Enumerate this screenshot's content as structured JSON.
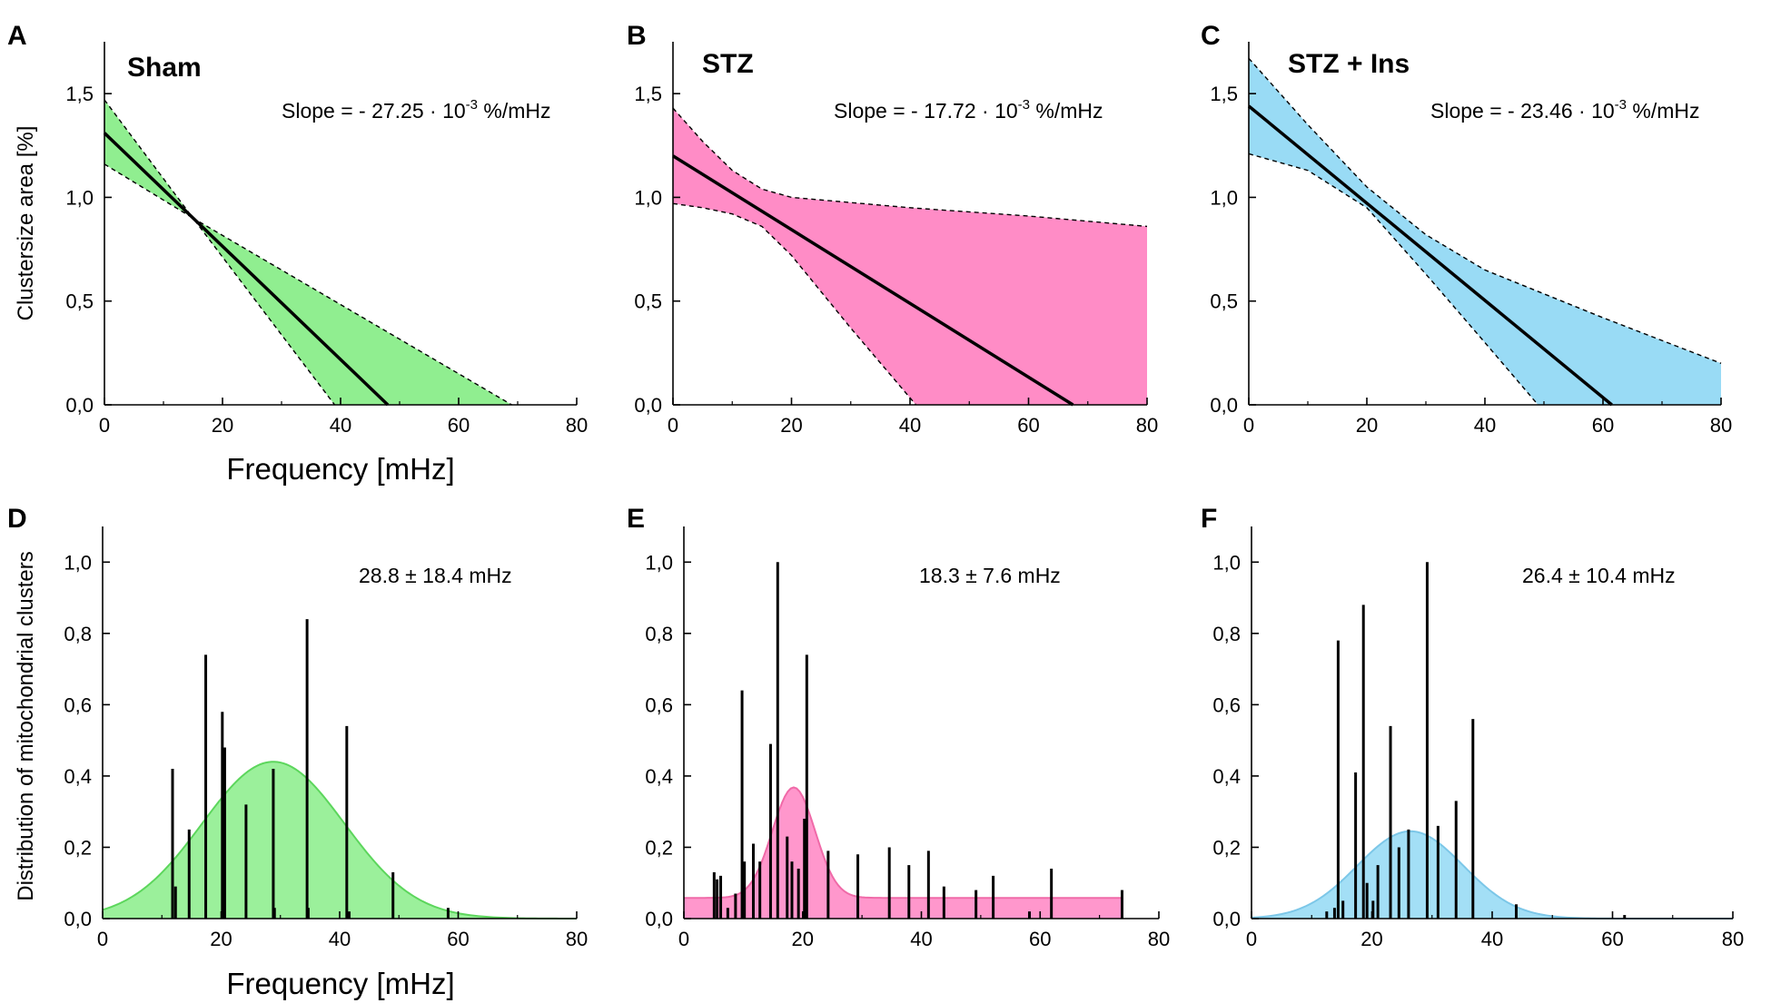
{
  "chart_data": [
    {
      "id": "A",
      "letter": "A",
      "type": "line",
      "title": "Sham",
      "annotation": {
        "prefix": "Slope = - 27.25 · 10",
        "sup": "-3",
        "suffix": " %/mHz"
      },
      "xlabel": "Frequency [mHz]",
      "ylabel": "Clustersize area [%]",
      "xlim": [
        0,
        80
      ],
      "ylim": [
        0,
        1.75
      ],
      "xticks": [
        "0",
        "20",
        "40",
        "60",
        "80"
      ],
      "yticks": [
        "0,0",
        "0,5",
        "1,0",
        "1,5"
      ],
      "fill_color": "#90ee90",
      "fit_line": {
        "x": [
          0,
          48
        ],
        "y": [
          1.31,
          0.0
        ]
      },
      "ci_upper": {
        "x": [
          0,
          15,
          69
        ],
        "y": [
          1.47,
          0.9,
          0.0
        ]
      },
      "ci_lower": {
        "x": [
          0,
          15,
          39
        ],
        "y": [
          1.16,
          0.9,
          0.0
        ]
      }
    },
    {
      "id": "B",
      "letter": "B",
      "type": "line",
      "title": "STZ",
      "annotation": {
        "prefix": "Slope = - 17.72 · 10",
        "sup": "-3",
        "suffix": " %/mHz"
      },
      "xlabel": "",
      "ylabel": "",
      "xlim": [
        0,
        80
      ],
      "ylim": [
        0,
        1.75
      ],
      "xticks": [
        "0",
        "20",
        "40",
        "60",
        "80"
      ],
      "yticks": [
        "0,0",
        "0,5",
        "1,0",
        "1,5"
      ],
      "fill_color": "#ff8cc6",
      "fit_line": {
        "x": [
          0,
          67.5
        ],
        "y": [
          1.2,
          0.0
        ]
      },
      "ci_upper": {
        "x": [
          0,
          5,
          10,
          15,
          20,
          40,
          60,
          80
        ],
        "y": [
          1.43,
          1.27,
          1.13,
          1.04,
          1.0,
          0.95,
          0.91,
          0.86
        ]
      },
      "ci_lower": {
        "x": [
          0,
          5,
          10,
          15,
          20,
          30,
          41
        ],
        "y": [
          0.97,
          0.95,
          0.92,
          0.86,
          0.72,
          0.37,
          0.0
        ]
      }
    },
    {
      "id": "C",
      "letter": "C",
      "type": "line",
      "title": "STZ + Ins",
      "annotation": {
        "prefix": "Slope = - 23.46 · 10",
        "sup": "-3",
        "suffix": " %/mHz"
      },
      "xlabel": "",
      "ylabel": "",
      "xlim": [
        0,
        80
      ],
      "ylim": [
        0,
        1.75
      ],
      "xticks": [
        "0",
        "20",
        "40",
        "60",
        "80"
      ],
      "yticks": [
        "0,0",
        "0,5",
        "1,0",
        "1,5"
      ],
      "fill_color": "#99dbf5",
      "fit_line": {
        "x": [
          0,
          61.5
        ],
        "y": [
          1.44,
          0.0
        ]
      },
      "ci_upper": {
        "x": [
          0,
          10,
          20,
          30,
          40,
          60,
          80
        ],
        "y": [
          1.67,
          1.35,
          1.05,
          0.82,
          0.65,
          0.42,
          0.2
        ]
      },
      "ci_lower": {
        "x": [
          0,
          10,
          20,
          30,
          40,
          49
        ],
        "y": [
          1.21,
          1.13,
          0.95,
          0.63,
          0.3,
          0.0
        ]
      }
    },
    {
      "id": "D",
      "letter": "D",
      "type": "histogram",
      "title": "",
      "annotation": {
        "prefix": "28.8 ± 18.4 mHz",
        "sup": "",
        "suffix": ""
      },
      "xlabel": "Frequency [mHz]",
      "ylabel": "Distribution of mitochondrial clusters",
      "xlim": [
        0,
        80
      ],
      "ylim": [
        0,
        1.1
      ],
      "xticks": [
        "0",
        "20",
        "40",
        "60",
        "80"
      ],
      "yticks": [
        "0,0",
        "0,2",
        "0,4",
        "0,6",
        "0,8",
        "1,0"
      ],
      "fill_color": "#90ee90",
      "line_color": "#5cd65c",
      "gaussian": {
        "baseline": 0.0,
        "amplitude": 0.44,
        "mean": 28.8,
        "sigma": 12.0
      },
      "bars": {
        "x": [
          11.8,
          12.3,
          14.6,
          17.4,
          20.2,
          20.6,
          24.2,
          28.8,
          29.0,
          34.5,
          34.7,
          41.2,
          41.6,
          49.0,
          58.3
        ],
        "y": [
          0.42,
          0.09,
          0.25,
          0.74,
          0.58,
          0.48,
          0.32,
          0.42,
          0.03,
          0.84,
          0.03,
          0.54,
          0.02,
          0.13,
          0.03
        ]
      }
    },
    {
      "id": "E",
      "letter": "E",
      "type": "histogram",
      "title": "",
      "annotation": {
        "prefix": "18.3 ± 7.6 mHz",
        "sup": "",
        "suffix": ""
      },
      "xlabel": "",
      "ylabel": "",
      "xlim": [
        0,
        80
      ],
      "ylim": [
        0,
        1.1
      ],
      "xticks": [
        "0",
        "20",
        "40",
        "60",
        "80"
      ],
      "yticks": [
        "0,0",
        "0,2",
        "0,4",
        "0,6",
        "0,8",
        "1,0"
      ],
      "fill_color": "#ff8cc6",
      "line_color": "#f06aa8",
      "gaussian": {
        "baseline": 0.058,
        "amplitude": 0.31,
        "mean": 18.5,
        "sigma": 3.6
      },
      "bars": {
        "x": [
          5.1,
          5.6,
          6.2,
          7.4,
          8.7,
          9.8,
          10.2,
          11.7,
          12.8,
          14.6,
          15.8,
          17.4,
          18.2,
          19.3,
          20.3,
          20.7,
          24.3,
          29.3,
          34.6,
          37.9,
          41.2,
          43.8,
          49.2,
          52.1,
          58.2,
          61.9,
          73.8
        ],
        "y": [
          0.13,
          0.11,
          0.12,
          0.03,
          0.07,
          0.64,
          0.16,
          0.21,
          0.16,
          0.49,
          1.0,
          0.23,
          0.16,
          0.14,
          0.28,
          0.74,
          0.19,
          0.18,
          0.2,
          0.15,
          0.19,
          0.09,
          0.08,
          0.12,
          0.02,
          0.14,
          0.08
        ]
      }
    },
    {
      "id": "F",
      "letter": "F",
      "type": "histogram",
      "title": "",
      "annotation": {
        "prefix": "26.4 ± 10.4 mHz",
        "sup": "",
        "suffix": ""
      },
      "xlabel": "",
      "ylabel": "",
      "xlim": [
        0,
        80
      ],
      "ylim": [
        0,
        1.1
      ],
      "xticks": [
        "0",
        "20",
        "40",
        "60",
        "80"
      ],
      "yticks": [
        "0,0",
        "0,2",
        "0,4",
        "0,6",
        "0,8",
        "1,0"
      ],
      "fill_color": "#99dbf5",
      "line_color": "#7cc7e8",
      "gaussian": {
        "baseline": 0.0,
        "amplitude": 0.245,
        "mean": 26.4,
        "sigma": 8.8
      },
      "bars": {
        "x": [
          12.5,
          13.8,
          14.4,
          15.2,
          17.3,
          18.6,
          19.2,
          20.2,
          21.0,
          23.1,
          24.5,
          26.1,
          29.2,
          31.0,
          34.0,
          36.8,
          44.0,
          62.0
        ],
        "y": [
          0.02,
          0.03,
          0.78,
          0.05,
          0.41,
          0.88,
          0.1,
          0.05,
          0.15,
          0.54,
          0.2,
          0.25,
          1.0,
          0.26,
          0.33,
          0.56,
          0.04,
          0.01
        ]
      }
    }
  ]
}
